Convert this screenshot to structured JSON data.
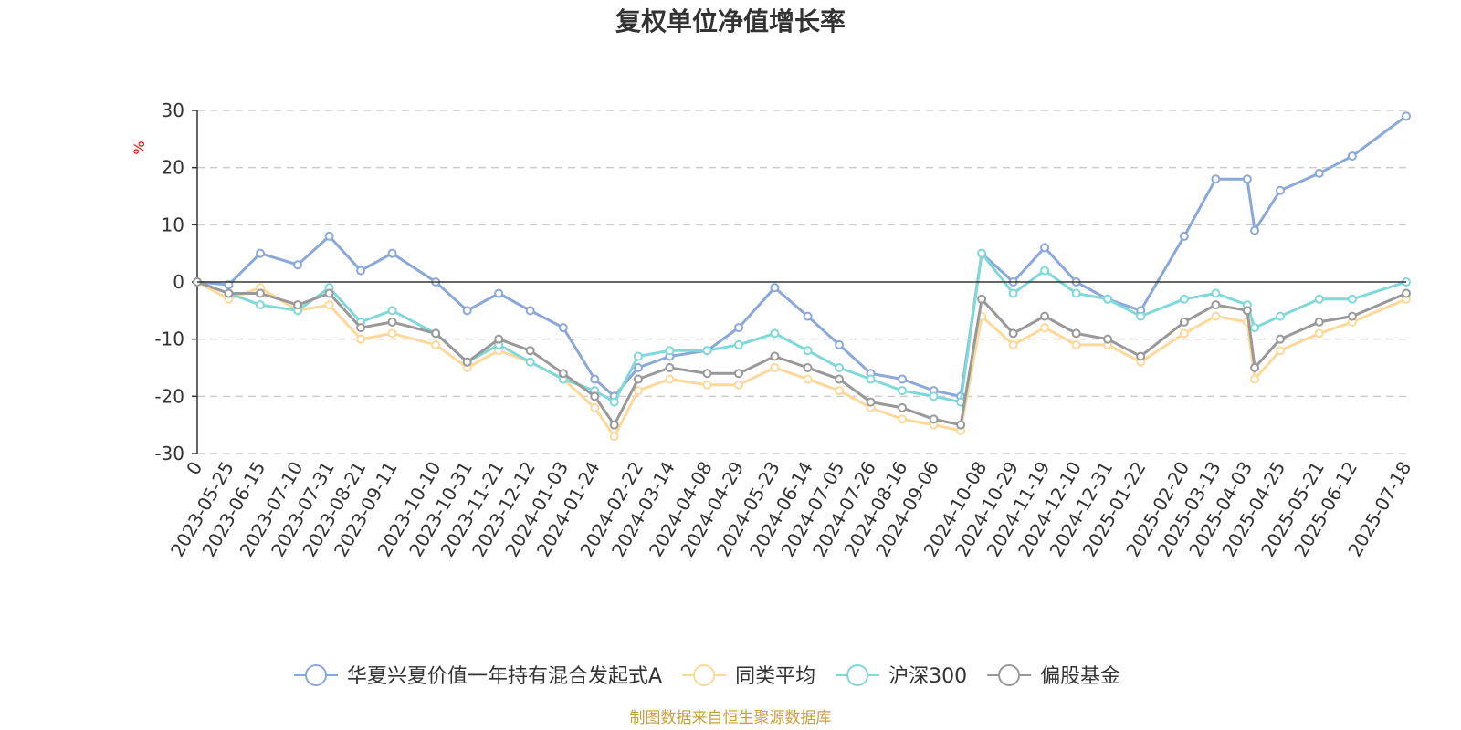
{
  "chart_data": {
    "type": "line",
    "title": "复权单位净值增长率",
    "ylabel": "%",
    "ylim": [
      -30,
      30
    ],
    "yticks": [
      -30,
      -20,
      -10,
      0,
      10,
      20,
      30
    ],
    "grid": true,
    "legend_position": "bottom",
    "x_tick_labels": [
      "0",
      "2023-05-25",
      "2023-06-15",
      "2023-07-10",
      "2023-07-31",
      "2023-08-21",
      "2023-09-11",
      "2023-10-10",
      "2023-10-31",
      "2023-11-21",
      "2023-12-12",
      "2024-01-03",
      "2024-01-24",
      "2024-02-22",
      "2024-03-14",
      "2024-04-08",
      "2024-04-29",
      "2024-05-23",
      "2024-06-14",
      "2024-07-05",
      "2024-07-26",
      "2024-08-16",
      "2024-09-06",
      "2024-10-08",
      "2024-10-29",
      "2024-11-19",
      "2024-12-10",
      "2024-12-31",
      "2025-01-22",
      "2025-02-20",
      "2025-03-13",
      "2025-04-03",
      "2025-04-25",
      "2025-05-21",
      "2025-06-12",
      "2025-07-18"
    ],
    "x": [
      "0",
      "2023-05-25",
      "2023-06-15",
      "2023-07-10",
      "2023-07-31",
      "2023-08-21",
      "2023-09-11",
      "2023-10-10",
      "2023-10-31",
      "2023-11-21",
      "2023-12-12",
      "2024-01-03",
      "2024-01-24",
      "2024-02-06",
      "2024-02-22",
      "2024-03-14",
      "2024-04-08",
      "2024-04-29",
      "2024-05-23",
      "2024-06-14",
      "2024-07-05",
      "2024-07-26",
      "2024-08-16",
      "2024-09-06",
      "2024-09-24",
      "2024-10-08",
      "2024-10-29",
      "2024-11-19",
      "2024-12-10",
      "2024-12-31",
      "2025-01-22",
      "2025-02-20",
      "2025-03-13",
      "2025-04-03",
      "2025-04-08",
      "2025-04-25",
      "2025-05-21",
      "2025-06-12",
      "2025-07-18"
    ],
    "series": [
      {
        "name": "华夏兴夏价值一年持有混合发起式A",
        "color": "#8aa8d8",
        "values": [
          0,
          -0.5,
          5,
          3,
          8,
          2,
          5,
          0,
          -5,
          -2,
          -5,
          -8,
          -17,
          -20,
          -15,
          -13,
          -12,
          -8,
          -1,
          -6,
          -11,
          -16,
          -17,
          -19,
          -20,
          5,
          0,
          6,
          0,
          -3,
          -5,
          8,
          18,
          18,
          9,
          16,
          19,
          22,
          29
        ]
      },
      {
        "name": "同类平均",
        "color": "#fdd89b",
        "values": [
          0,
          -3,
          -1,
          -5,
          -4,
          -10,
          -9,
          -11,
          -15,
          -12,
          -14,
          -17,
          -22,
          -27,
          -19,
          -17,
          -18,
          -18,
          -15,
          -17,
          -19,
          -22,
          -24,
          -25,
          -26,
          -6,
          -11,
          -8,
          -11,
          -11,
          -14,
          -9,
          -6,
          -7,
          -17,
          -12,
          -9,
          -7,
          -3
        ]
      },
      {
        "name": "沪深300",
        "color": "#80d8d8",
        "values": [
          0,
          -2,
          -4,
          -5,
          -1,
          -7,
          -5,
          -9,
          -14,
          -11,
          -14,
          -17,
          -19,
          -21,
          -13,
          -12,
          -12,
          -11,
          -9,
          -12,
          -15,
          -17,
          -19,
          -20,
          -21,
          5,
          -2,
          2,
          -2,
          -3,
          -6,
          -3,
          -2,
          -4,
          -8,
          -6,
          -3,
          -3,
          0
        ]
      },
      {
        "name": "偏股基金",
        "color": "#999999",
        "values": [
          0,
          -2,
          -2,
          -4,
          -2,
          -8,
          -7,
          -9,
          -14,
          -10,
          -12,
          -16,
          -20,
          -25,
          -17,
          -15,
          -16,
          -16,
          -13,
          -15,
          -17,
          -21,
          -22,
          -24,
          -25,
          -3,
          -9,
          -6,
          -9,
          -10,
          -13,
          -7,
          -4,
          -5,
          -15,
          -10,
          -7,
          -6,
          -2
        ]
      }
    ]
  },
  "source_note": "制图数据来自恒生聚源数据库"
}
